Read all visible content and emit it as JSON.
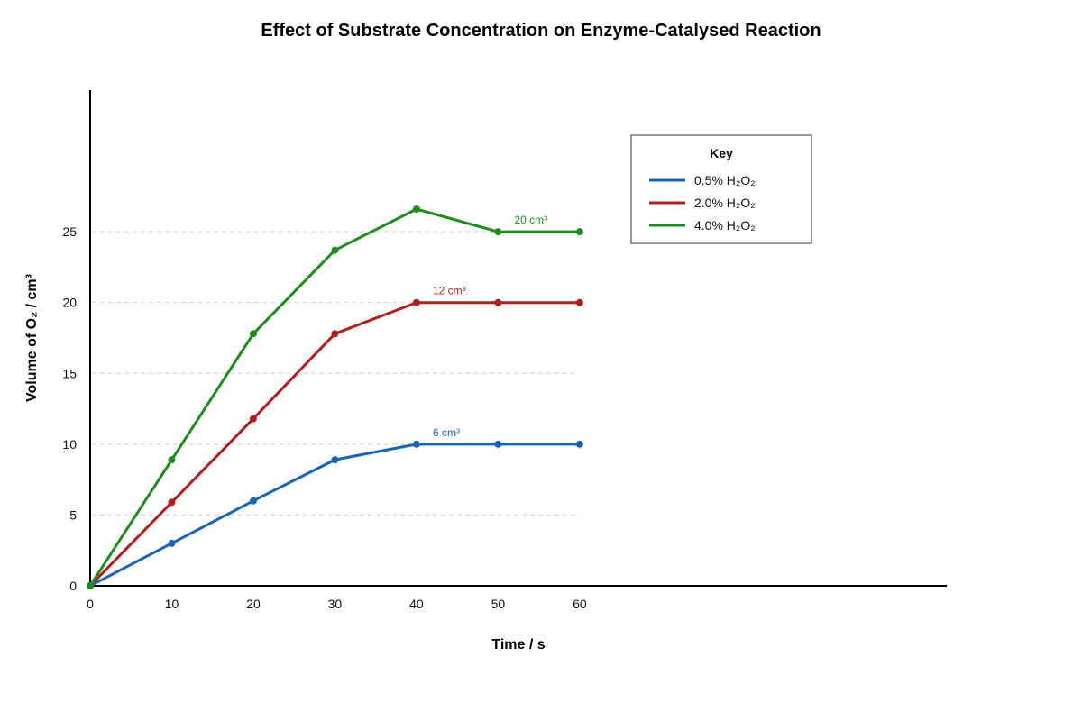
{
  "chart_data": {
    "type": "line",
    "title": "Effect of Substrate Concentration on Enzyme-Catalysed Reaction",
    "xlabel": "Time / s",
    "ylabel": "Volume of O₂ / cm³",
    "x": [
      0,
      10,
      20,
      30,
      40,
      50,
      60
    ],
    "xlim": [
      0,
      105
    ],
    "ylim": [
      0,
      35
    ],
    "xticks": [
      0,
      10,
      20,
      30,
      40,
      50,
      60
    ],
    "yticks": [
      0,
      5,
      10,
      15,
      20,
      25
    ],
    "grid": "horizontal dashed",
    "legend": {
      "title": "Key",
      "placement": "top-right",
      "entries": [
        "0.5% H₂O₂",
        "2.0% H₂O₂",
        "4.0% H₂O₂"
      ]
    },
    "series": [
      {
        "name": "0.5% H₂O₂",
        "color": "#1565c0",
        "values": [
          0,
          3,
          6,
          8.9,
          10,
          10,
          10
        ]
      },
      {
        "name": "2.0% H₂O₂",
        "color": "#b71c1c",
        "values": [
          0,
          5.9,
          11.8,
          17.8,
          20,
          20,
          20
        ]
      },
      {
        "name": "4.0% H₂O₂",
        "color": "#1b8f1b",
        "values": [
          0,
          8.9,
          17.8,
          23.7,
          26.6,
          25,
          25
        ]
      }
    ],
    "annotations": [
      {
        "text": "6 cm³",
        "x": 42,
        "y": 10,
        "series": 0
      },
      {
        "text": "12 cm³",
        "x": 42,
        "y": 20,
        "series": 1
      },
      {
        "text": "20 cm³",
        "x": 52,
        "y": 25,
        "series": 2
      }
    ]
  }
}
